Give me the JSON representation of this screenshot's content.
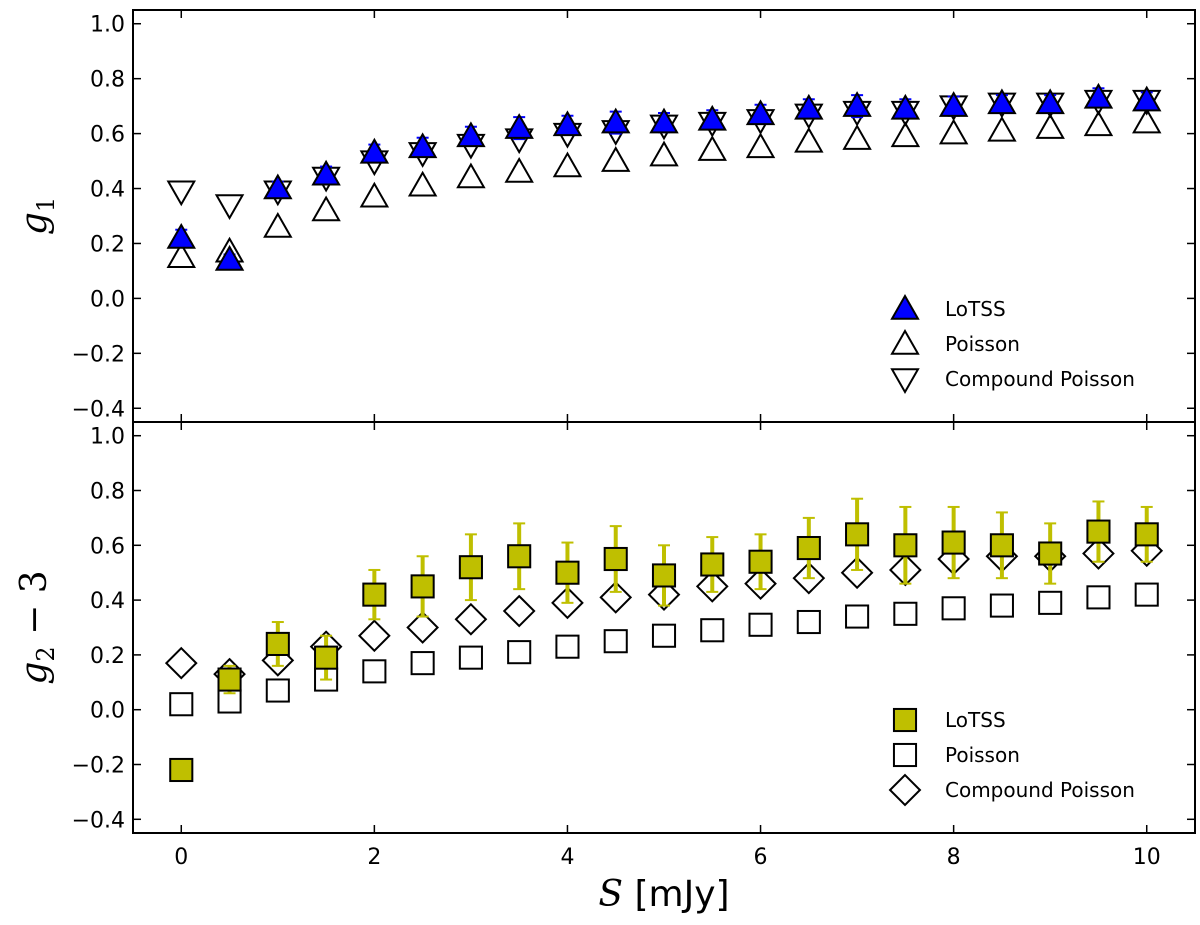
{
  "chart_data": [
    {
      "type": "scatter",
      "panel": "top",
      "ylabel": "g_1",
      "ylabel_base": "g",
      "ylabel_sub": "1",
      "ylabel_suffix": "",
      "xlim": [
        -0.5,
        10.5
      ],
      "ylim": [
        -0.45,
        1.05
      ],
      "yticks": [
        1.0,
        0.8,
        0.6,
        0.4,
        0.2,
        0.0,
        -0.2,
        -0.4
      ],
      "ytick_labels": [
        "1.0",
        "0.8",
        "0.6",
        "0.4",
        "0.2",
        "0.0",
        "−0.2",
        "−0.4"
      ],
      "legend_position": "lower-right",
      "x": [
        0,
        0.5,
        1,
        1.5,
        2,
        2.5,
        3,
        3.5,
        4,
        4.5,
        5,
        5.5,
        6,
        6.5,
        7,
        7.5,
        8,
        8.5,
        9,
        9.5,
        10
      ],
      "series": [
        {
          "name": "LoTSS",
          "marker": "triangle-up",
          "filled": true,
          "color": "#0000ff",
          "y": [
            0.22,
            0.14,
            0.4,
            0.45,
            0.53,
            0.55,
            0.59,
            0.62,
            0.63,
            0.64,
            0.64,
            0.65,
            0.67,
            0.69,
            0.7,
            0.69,
            0.7,
            0.71,
            0.71,
            0.73,
            0.72
          ],
          "yerr": [
            0.03,
            0.02,
            0.025,
            0.03,
            0.03,
            0.035,
            0.035,
            0.04,
            0.035,
            0.04,
            0.035,
            0.035,
            0.035,
            0.035,
            0.04,
            0.035,
            0.035,
            0.03,
            0.03,
            0.035,
            0.03
          ]
        },
        {
          "name": "Poisson",
          "marker": "triangle-up",
          "filled": false,
          "color": "#000000",
          "y": [
            0.15,
            0.17,
            0.26,
            0.32,
            0.37,
            0.41,
            0.44,
            0.46,
            0.48,
            0.5,
            0.52,
            0.54,
            0.55,
            0.57,
            0.58,
            0.59,
            0.6,
            0.61,
            0.62,
            0.63,
            0.64
          ]
        },
        {
          "name": "Compound Poisson",
          "marker": "triangle-down",
          "filled": false,
          "color": "#000000",
          "y": [
            0.39,
            0.34,
            0.39,
            0.44,
            0.5,
            0.53,
            0.56,
            0.58,
            0.6,
            0.61,
            0.63,
            0.64,
            0.65,
            0.67,
            0.68,
            0.68,
            0.7,
            0.71,
            0.71,
            0.72,
            0.72
          ]
        }
      ]
    },
    {
      "type": "scatter",
      "panel": "bottom",
      "ylabel": "g_2 − 3",
      "ylabel_base": "g",
      "ylabel_sub": "2",
      "ylabel_suffix": " − 3",
      "xlabel": "S [mJy]",
      "xlabel_var": "S",
      "xlabel_unit": " [mJy]",
      "xlim": [
        -0.5,
        10.5
      ],
      "ylim": [
        -0.45,
        1.05
      ],
      "xticks": [
        0,
        2,
        4,
        6,
        8,
        10
      ],
      "xtick_labels": [
        "0",
        "2",
        "4",
        "6",
        "8",
        "10"
      ],
      "yticks": [
        1.0,
        0.8,
        0.6,
        0.4,
        0.2,
        0.0,
        -0.2,
        -0.4
      ],
      "ytick_labels": [
        "1.0",
        "0.8",
        "0.6",
        "0.4",
        "0.2",
        "0.0",
        "−0.2",
        "−0.4"
      ],
      "legend_position": "lower-right",
      "x": [
        0,
        0.5,
        1,
        1.5,
        2,
        2.5,
        3,
        3.5,
        4,
        4.5,
        5,
        5.5,
        6,
        6.5,
        7,
        7.5,
        8,
        8.5,
        9,
        9.5,
        10
      ],
      "series": [
        {
          "name": "LoTSS",
          "marker": "square",
          "filled": true,
          "color": "#bfbf00",
          "y": [
            -0.22,
            0.11,
            0.24,
            0.19,
            0.42,
            0.45,
            0.52,
            0.56,
            0.5,
            0.55,
            0.49,
            0.53,
            0.54,
            0.59,
            0.64,
            0.6,
            0.61,
            0.6,
            0.57,
            0.65,
            0.64
          ],
          "yerr": [
            0.0,
            0.05,
            0.08,
            0.08,
            0.09,
            0.11,
            0.12,
            0.12,
            0.11,
            0.12,
            0.11,
            0.1,
            0.1,
            0.11,
            0.13,
            0.14,
            0.13,
            0.12,
            0.11,
            0.11,
            0.1
          ]
        },
        {
          "name": "Poisson",
          "marker": "square",
          "filled": false,
          "color": "#000000",
          "y": [
            0.02,
            0.03,
            0.07,
            0.11,
            0.14,
            0.17,
            0.19,
            0.21,
            0.23,
            0.25,
            0.27,
            0.29,
            0.31,
            0.32,
            0.34,
            0.35,
            0.37,
            0.38,
            0.39,
            0.41,
            0.42
          ]
        },
        {
          "name": "Compound Poisson",
          "marker": "diamond",
          "filled": false,
          "color": "#000000",
          "y": [
            0.17,
            0.13,
            0.18,
            0.23,
            0.27,
            0.3,
            0.33,
            0.36,
            0.39,
            0.41,
            0.42,
            0.45,
            0.46,
            0.48,
            0.5,
            0.51,
            0.55,
            0.56,
            0.56,
            0.57,
            0.58
          ]
        }
      ]
    }
  ]
}
